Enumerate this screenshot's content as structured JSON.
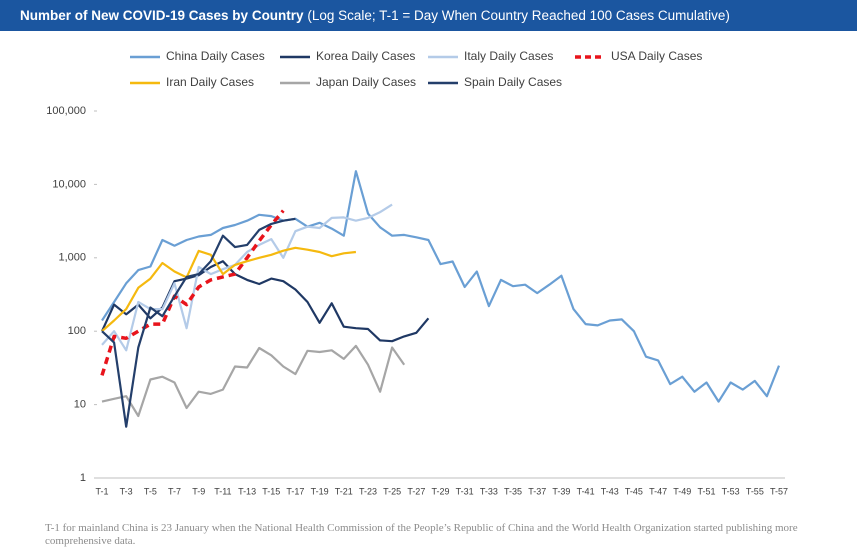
{
  "chart_data": {
    "type": "line",
    "title": "Number of New COVID-19 Cases by Country",
    "subtitle": "(Log Scale; T-1 = Day When Country Reached 100 Cases Cumulative)",
    "footnote": "T-1 for mainland China is 23 January when the National Health Commission of the People’s Republic of China and the World Health Organization started publishing more comprehensive data.",
    "log_scale": true,
    "ylim": [
      1,
      100000
    ],
    "yticks": [
      1,
      10,
      100,
      {
        "value": 1000,
        "label": "1,000"
      },
      {
        "value": 10000,
        "label": "10,000"
      },
      {
        "value": 100000,
        "label": "100,000"
      }
    ],
    "categories": [
      "T-1",
      null,
      "T-3",
      null,
      "T-5",
      null,
      "T-7",
      null,
      "T-9",
      null,
      "T-11",
      null,
      "T-13",
      null,
      "T-15",
      null,
      "T-17",
      null,
      "T-19",
      null,
      "T-21",
      null,
      "T-23",
      null,
      "T-25",
      null,
      "T-27",
      null,
      "T-29",
      null,
      "T-31",
      null,
      "T-33",
      null,
      "T-35",
      null,
      "T-37",
      null,
      "T-39",
      null,
      "T-41",
      null,
      "T-43",
      null,
      "T-45",
      null,
      "T-47",
      null,
      "T-49",
      null,
      "T-51",
      null,
      "T-53",
      null,
      "T-55",
      null,
      "T-57"
    ],
    "series": [
      {
        "name": "China Daily Cases",
        "color": "#6a9fd4",
        "values": [
          140,
          250,
          450,
          680,
          760,
          1750,
          1460,
          1750,
          1950,
          2050,
          2550,
          2800,
          3200,
          3850,
          3700,
          3200,
          3400,
          2650,
          3000,
          2500,
          2000,
          15150,
          4000,
          2600,
          2000,
          2050,
          1900,
          1750,
          820,
          890,
          400,
          650,
          220,
          500,
          410,
          430,
          330,
          430,
          570,
          200,
          125,
          120,
          140,
          145,
          100,
          45,
          40,
          19,
          24,
          15,
          20,
          11,
          20,
          16,
          21,
          13,
          34
        ]
      },
      {
        "name": "Korea Daily Cases",
        "color": "#1f3864",
        "values": [
          100,
          230,
          170,
          230,
          150,
          210,
          480,
          520,
          580,
          750,
          900,
          600,
          500,
          440,
          520,
          480,
          370,
          250,
          130,
          240,
          115,
          110,
          107,
          75,
          73,
          85,
          95,
          150,
          null,
          null,
          null,
          null,
          null,
          null,
          null,
          null,
          null,
          null,
          null,
          null,
          null,
          null,
          null,
          null,
          null,
          null,
          null,
          null,
          null,
          null,
          null,
          null,
          null,
          null,
          null,
          null,
          null
        ]
      },
      {
        "name": "Italy Daily Cases",
        "color": "#b4cbe8",
        "values": [
          65,
          100,
          55,
          250,
          200,
          200,
          450,
          110,
          750,
          600,
          700,
          800,
          1200,
          1500,
          1800,
          1000,
          2300,
          2650,
          2550,
          3500,
          3550,
          3200,
          3500,
          4200,
          5300,
          null,
          null,
          null,
          null,
          null,
          null,
          null,
          null,
          null,
          null,
          null,
          null,
          null,
          null,
          null,
          null,
          null,
          null,
          null,
          null,
          null,
          null,
          null,
          null,
          null,
          null,
          null,
          null,
          null,
          null,
          null,
          null
        ]
      },
      {
        "name": "USA Daily Cases",
        "color": "#e8141c",
        "dashed": true,
        "values": [
          25,
          85,
          80,
          100,
          125,
          125,
          300,
          230,
          400,
          500,
          550,
          600,
          1000,
          1700,
          2800,
          4400,
          null,
          null,
          null,
          null,
          null,
          null,
          null,
          null,
          null,
          null,
          null,
          null,
          null,
          null,
          null,
          null,
          null,
          null,
          null,
          null,
          null,
          null,
          null,
          null,
          null,
          null,
          null,
          null,
          null,
          null,
          null,
          null,
          null,
          null,
          null,
          null,
          null,
          null,
          null,
          null,
          null
        ]
      },
      {
        "name": "Iran Daily Cases",
        "color": "#f5b90f",
        "values": [
          100,
          140,
          200,
          390,
          520,
          850,
          650,
          540,
          1240,
          1100,
          600,
          800,
          900,
          1000,
          1100,
          1250,
          1370,
          1290,
          1200,
          1050,
          1150,
          1200,
          null,
          null,
          null,
          null,
          null,
          null,
          null,
          null,
          null,
          null,
          null,
          null,
          null,
          null,
          null,
          null,
          null,
          null,
          null,
          null,
          null,
          null,
          null,
          null,
          null,
          null,
          null,
          null,
          null,
          null,
          null,
          null,
          null,
          null,
          null
        ]
      },
      {
        "name": "Japan Daily Cases",
        "color": "#a6a6a6",
        "values": [
          11,
          12,
          13,
          7,
          22,
          24,
          20,
          9,
          15,
          14,
          16,
          33,
          32,
          59,
          47,
          33,
          26,
          54,
          52,
          55,
          42,
          63,
          35,
          15,
          60,
          35,
          null,
          null,
          null,
          null,
          null,
          null,
          null,
          null,
          null,
          null,
          null,
          null,
          null,
          null,
          null,
          null,
          null,
          null,
          null,
          null,
          null,
          null,
          null,
          null,
          null,
          null,
          null,
          null,
          null,
          null,
          null
        ]
      },
      {
        "name": "Spain Daily Cases",
        "color": "#243f6b",
        "values": [
          100,
          70,
          5,
          60,
          210,
          160,
          300,
          550,
          600,
          900,
          2000,
          1400,
          1500,
          2400,
          2900,
          3200,
          3400,
          null,
          null,
          null,
          null,
          null,
          null,
          null,
          null,
          null,
          null,
          null,
          null,
          null,
          null,
          null,
          null,
          null,
          null,
          null,
          null,
          null,
          null,
          null,
          null,
          null,
          null,
          null,
          null,
          null,
          null,
          null,
          null,
          null,
          null,
          null,
          null,
          null,
          null,
          null,
          null
        ]
      }
    ]
  }
}
